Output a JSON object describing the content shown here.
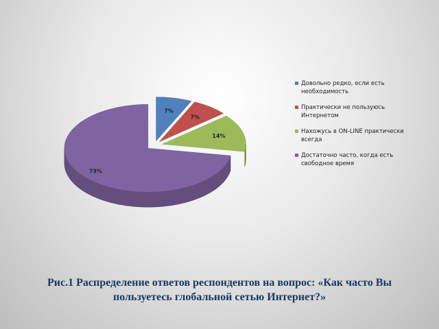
{
  "chart_data": {
    "type": "pie",
    "title": "Рис.1 Распределение ответов респондентов на вопрос: «Как часто Вы пользуетесь глобальной сетью Интернет?»",
    "categories": [
      "Довольно редко, если есть необходимость",
      "Практически не пользуюсь Интернетом",
      "Нахожусь в ON-LINE практически всегда",
      "Достаточно часто, когда есть свободное время"
    ],
    "values": [
      7,
      7,
      14,
      73
    ],
    "value_labels": [
      "7%",
      "7%",
      "14%",
      "73%"
    ],
    "colors": [
      "#4f81bd",
      "#c0504d",
      "#9bbb59",
      "#8064a2"
    ],
    "legend": "right"
  }
}
